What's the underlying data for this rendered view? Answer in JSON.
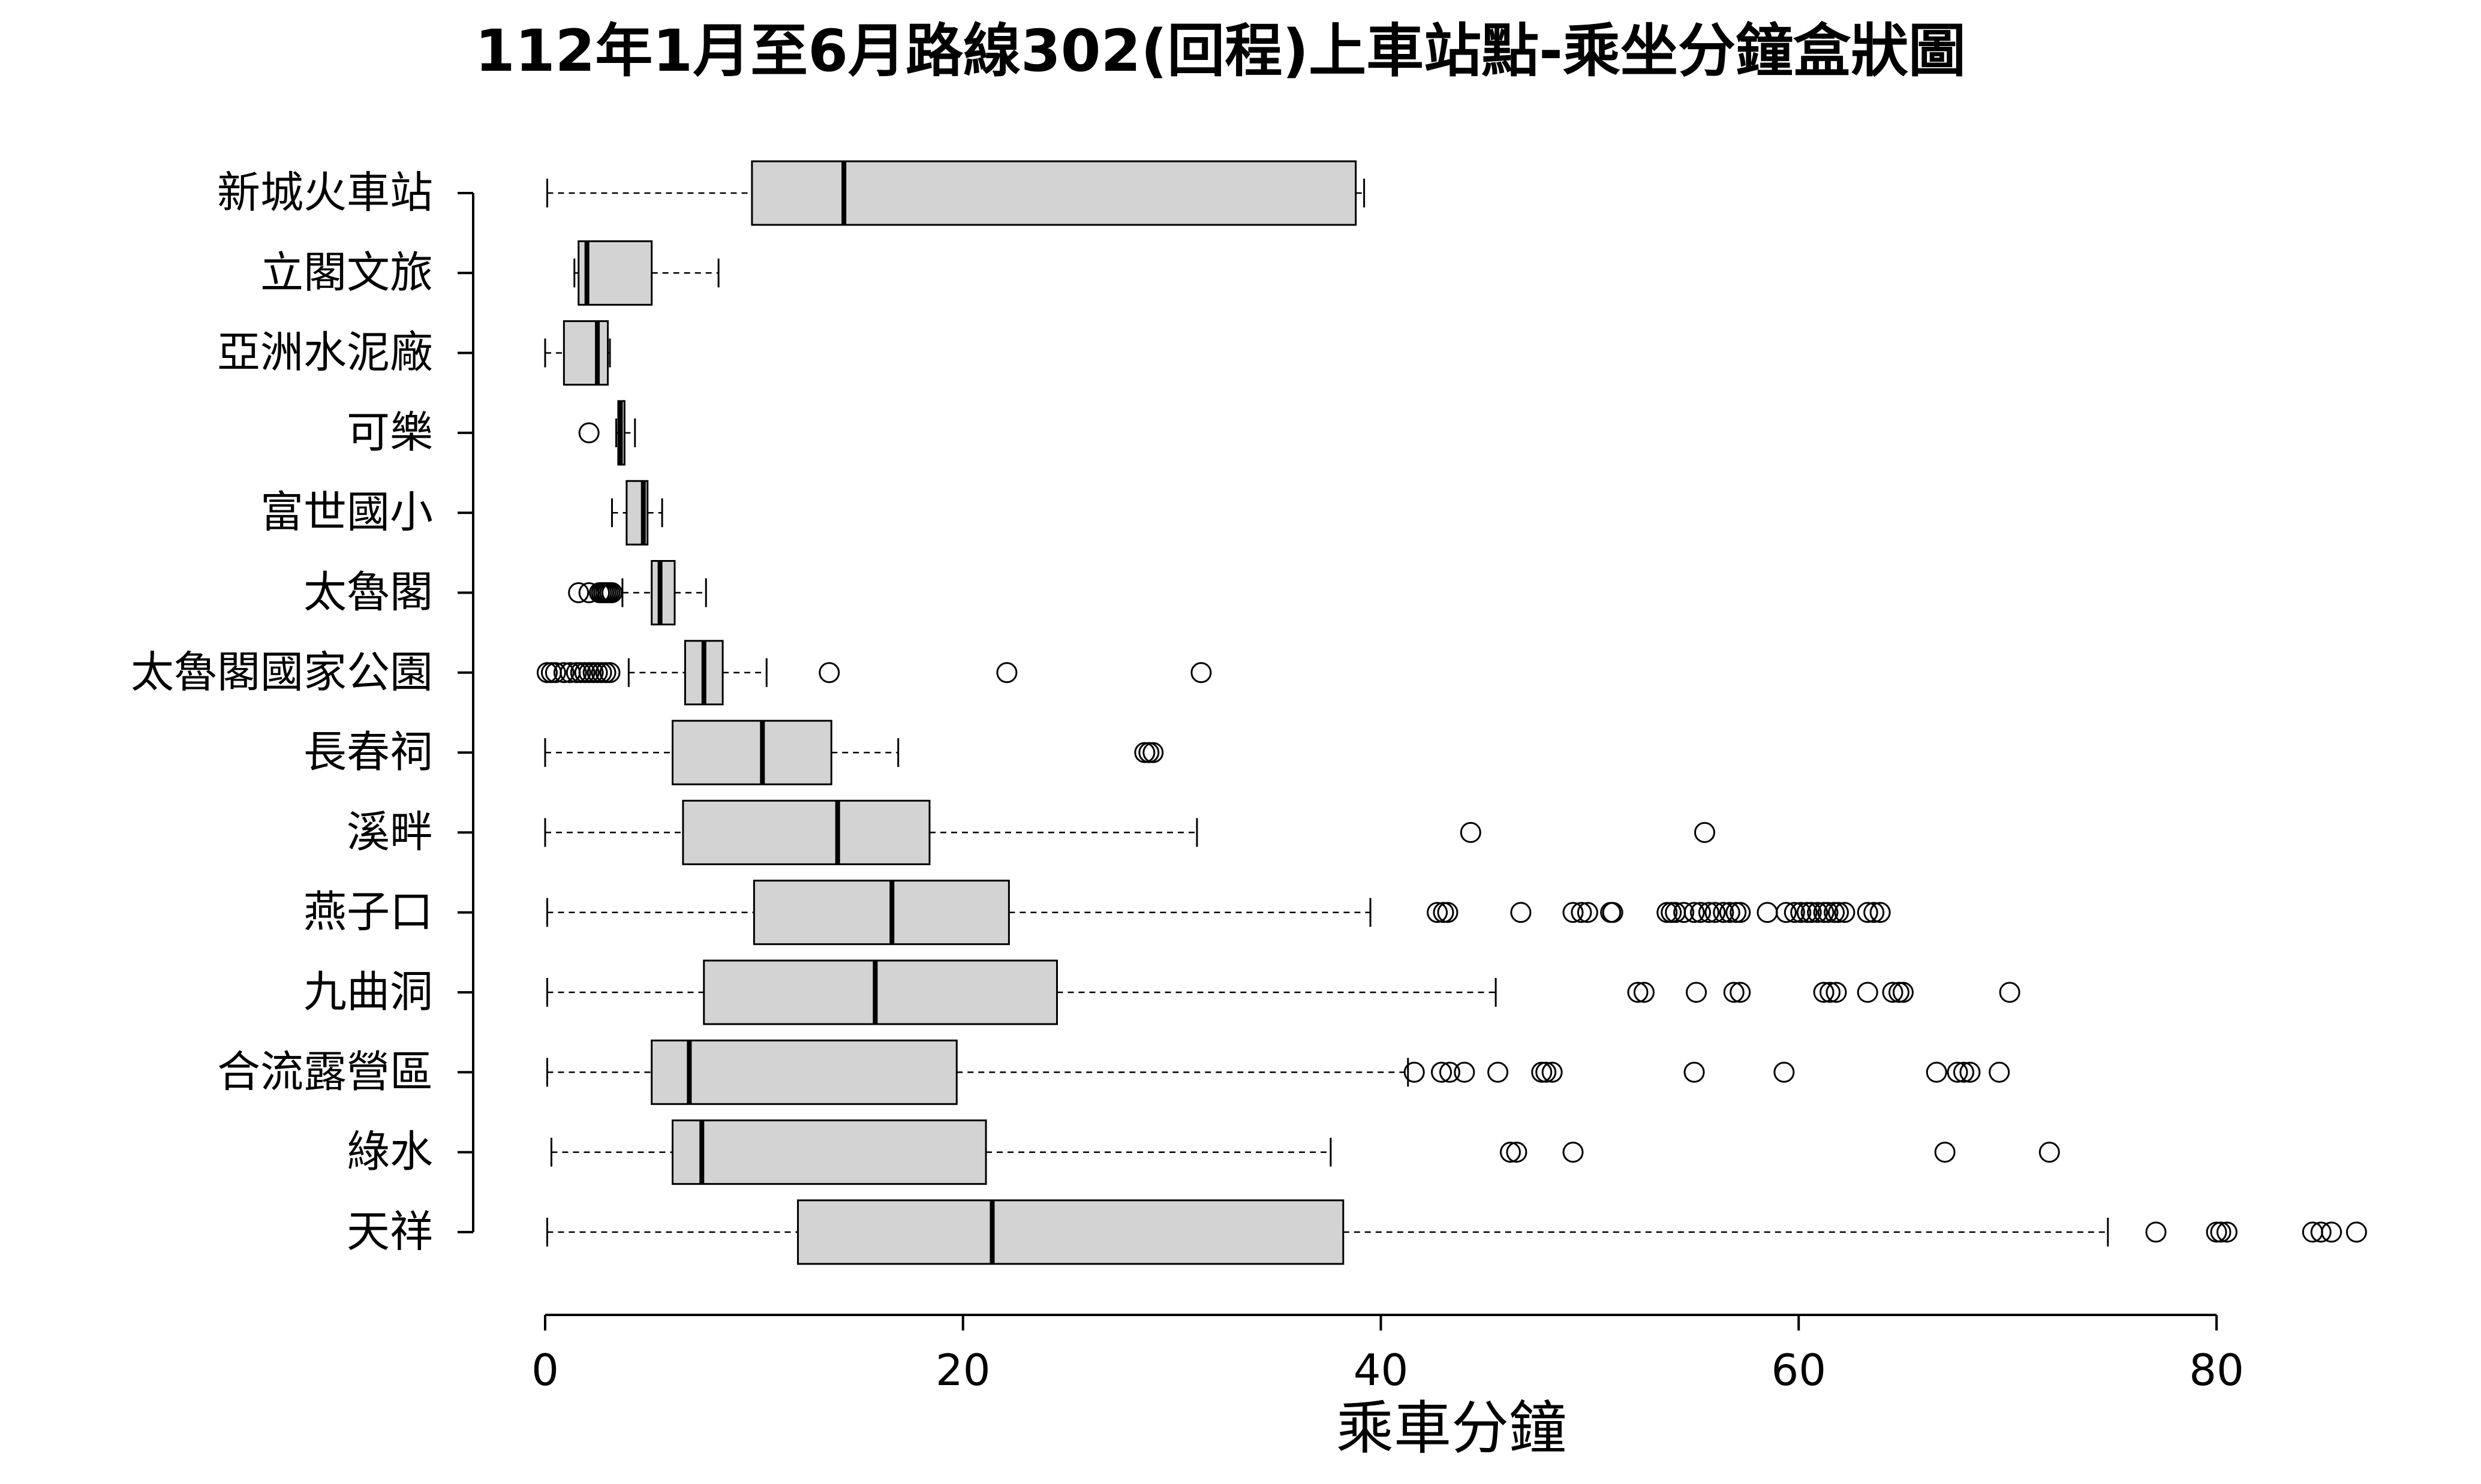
{
  "chart_data": {
    "type": "boxplot",
    "orientation": "horizontal",
    "title": "112年1月至6月路線302(回程)上車站點-乘坐分鐘盒狀圖",
    "xlabel": "乘車分鐘",
    "ylabel": "",
    "xlim": [
      0,
      87
    ],
    "xticks": [
      0,
      20,
      40,
      60,
      80
    ],
    "box_color": "#d3d3d3",
    "categories": [
      "新城火車站",
      "立閣文旅",
      "亞洲水泥廠",
      "可樂",
      "富世國小",
      "太魯閣",
      "太魯閣國家公園",
      "長春祠",
      "溪畔",
      "燕子口",
      "九曲洞",
      "合流露營區",
      "綠水",
      "天祥"
    ],
    "boxes": [
      {
        "min": 0.1,
        "q1": 9.9,
        "median": 14.3,
        "q3": 38.8,
        "max": 39.2,
        "outliers": []
      },
      {
        "min": 1.4,
        "q1": 1.6,
        "median": 2.0,
        "q3": 5.1,
        "max": 8.3,
        "outliers": []
      },
      {
        "min": 0.0,
        "q1": 0.9,
        "median": 2.5,
        "q3": 3.0,
        "max": 3.1,
        "outliers": []
      },
      {
        "min": 3.4,
        "q1": 3.5,
        "median": 3.6,
        "q3": 3.8,
        "max": 4.3,
        "outliers": [
          2.1
        ]
      },
      {
        "min": 3.2,
        "q1": 3.9,
        "median": 4.7,
        "q3": 4.9,
        "max": 5.6,
        "outliers": []
      },
      {
        "min": 3.7,
        "q1": 5.1,
        "median": 5.5,
        "q3": 6.2,
        "max": 7.7,
        "outliers": [
          1.6,
          2.1,
          2.6,
          2.7,
          2.8,
          2.9,
          3.0,
          3.1,
          3.2
        ]
      },
      {
        "min": 4.0,
        "q1": 6.7,
        "median": 7.6,
        "q3": 8.5,
        "max": 10.6,
        "outliers": [
          0.1,
          0.3,
          0.5,
          0.9,
          1.2,
          1.5,
          1.7,
          1.9,
          2.1,
          2.3,
          2.5,
          2.7,
          2.9,
          3.1,
          13.6,
          22.1,
          31.4
        ]
      },
      {
        "min": 0.0,
        "q1": 6.1,
        "median": 10.4,
        "q3": 13.7,
        "max": 16.9,
        "outliers": [
          28.7,
          28.9,
          29.1
        ]
      },
      {
        "min": 0.0,
        "q1": 6.6,
        "median": 14.0,
        "q3": 18.4,
        "max": 31.2,
        "outliers": [
          44.3,
          55.5
        ]
      },
      {
        "min": 0.1,
        "q1": 10.0,
        "median": 16.6,
        "q3": 22.2,
        "max": 39.5,
        "outliers": [
          42.7,
          43.0,
          43.2,
          46.7,
          49.2,
          49.6,
          49.9,
          51.0,
          51.1,
          53.7,
          53.9,
          54.1,
          54.5,
          55.0,
          55.3,
          55.7,
          56.0,
          56.4,
          56.7,
          57.0,
          57.2,
          58.5,
          59.4,
          59.8,
          60.1,
          60.4,
          60.6,
          60.9,
          61.2,
          61.4,
          61.7,
          61.9,
          62.2,
          63.3,
          63.6,
          63.9
        ]
      },
      {
        "min": 0.1,
        "q1": 7.6,
        "median": 15.8,
        "q3": 24.5,
        "max": 45.5,
        "outliers": [
          52.3,
          52.6,
          55.1,
          56.9,
          57.2,
          61.2,
          61.5,
          61.8,
          63.3,
          64.5,
          64.8,
          65.0,
          70.1
        ]
      },
      {
        "min": 0.1,
        "q1": 5.1,
        "median": 6.9,
        "q3": 19.7,
        "max": 41.3,
        "outliers": [
          41.6,
          42.9,
          43.3,
          44.0,
          45.6,
          47.7,
          47.9,
          48.2,
          55.0,
          59.3,
          66.6,
          67.6,
          67.9,
          68.2,
          69.6
        ]
      },
      {
        "min": 0.3,
        "q1": 6.1,
        "median": 7.5,
        "q3": 21.1,
        "max": 37.6,
        "outliers": [
          46.2,
          46.5,
          49.2,
          67.0,
          72.0
        ]
      },
      {
        "min": 0.1,
        "q1": 12.1,
        "median": 21.4,
        "q3": 38.2,
        "max": 74.8,
        "outliers": [
          77.1,
          80.0,
          80.2,
          80.5,
          84.6,
          85.0,
          85.5,
          86.7
        ]
      }
    ]
  }
}
